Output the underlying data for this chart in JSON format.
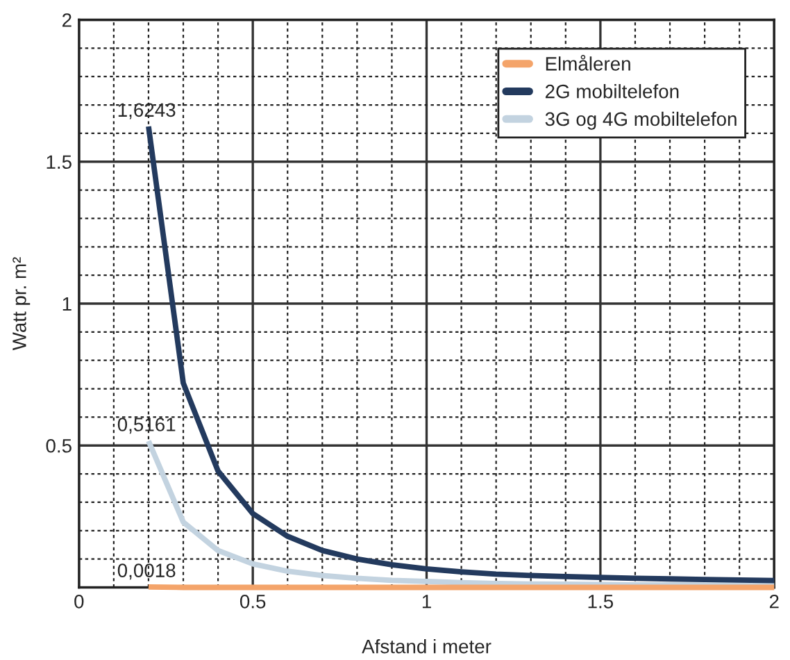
{
  "chart_data": {
    "type": "line",
    "xlabel": "Afstand i meter",
    "ylabel": "Watt pr. m²",
    "x": [
      0.2,
      0.3,
      0.4,
      0.5,
      0.6,
      0.7,
      0.8,
      0.9,
      1.0,
      1.1,
      1.2,
      1.3,
      1.4,
      1.5,
      1.6,
      1.7,
      1.8,
      1.9,
      2.0
    ],
    "series": [
      {
        "name": "Elmåleren",
        "color": "#f4a46a",
        "values": [
          0.0018,
          0,
          0,
          0,
          0,
          0,
          0,
          0,
          0,
          0,
          0,
          0,
          0,
          0,
          0,
          0,
          0,
          0,
          0
        ],
        "value_labels": [
          "0,0018",
          null,
          null,
          null,
          null,
          null,
          null,
          null,
          null,
          null,
          null,
          null,
          null,
          null,
          null,
          null,
          null,
          null,
          null
        ]
      },
      {
        "name": "2G mobiltelefon",
        "color": "#233a5e",
        "values": [
          1.6243,
          0.72,
          0.41,
          0.26,
          0.18,
          0.13,
          0.1,
          0.08,
          0.065,
          0.055,
          0.047,
          0.042,
          0.038,
          0.035,
          0.032,
          0.03,
          0.028,
          0.026,
          0.024
        ],
        "value_labels": [
          "1,6243",
          null,
          null,
          null,
          null,
          null,
          null,
          null,
          null,
          null,
          null,
          null,
          null,
          null,
          null,
          null,
          null,
          null,
          null
        ]
      },
      {
        "name": "3G og 4G mobiltelefon",
        "color": "#c3d3e0",
        "values": [
          0.5161,
          0.23,
          0.13,
          0.083,
          0.057,
          0.042,
          0.032,
          0.025,
          0.021,
          0.017,
          0.014,
          0.012,
          0.011,
          0.01,
          0.009,
          0.009,
          0.008,
          0.008,
          0.007
        ],
        "value_labels": [
          "0,5161",
          null,
          null,
          null,
          null,
          null,
          null,
          null,
          null,
          null,
          null,
          null,
          null,
          null,
          null,
          null,
          null,
          null,
          null
        ]
      }
    ],
    "xlim": [
      0,
      2
    ],
    "ylim": [
      0,
      2
    ],
    "xticks": [
      0,
      {
        "value": 0.1,
        "label": null
      },
      {
        "value": 0.2,
        "label": null
      },
      {
        "value": 0.3,
        "label": null
      },
      {
        "value": 0.4,
        "label": null
      },
      0.5,
      {
        "value": 0.6,
        "label": null
      },
      {
        "value": 0.7,
        "label": null
      },
      {
        "value": 0.8,
        "label": null
      },
      {
        "value": 0.9,
        "label": null
      },
      1,
      {
        "value": 1.1,
        "label": null
      },
      {
        "value": 1.2,
        "label": null
      },
      {
        "value": 1.3,
        "label": null
      },
      {
        "value": 1.4,
        "label": null
      },
      1.5,
      {
        "value": 1.6,
        "label": null
      },
      {
        "value": 1.7,
        "label": null
      },
      {
        "value": 1.8,
        "label": null
      },
      {
        "value": 1.9,
        "label": null
      },
      2
    ],
    "yticks": [
      {
        "value": 0.1,
        "label": null
      },
      {
        "value": 0.2,
        "label": null
      },
      {
        "value": 0.3,
        "label": null
      },
      {
        "value": 0.4,
        "label": null
      },
      0.5,
      {
        "value": 0.6,
        "label": null
      },
      {
        "value": 0.7,
        "label": null
      },
      {
        "value": 0.8,
        "label": null
      },
      {
        "value": 0.9,
        "label": null
      },
      1,
      {
        "value": 1.1,
        "label": null
      },
      {
        "value": 1.2,
        "label": null
      },
      {
        "value": 1.3,
        "label": null
      },
      {
        "value": 1.4,
        "label": null
      },
      1.5,
      {
        "value": 1.6,
        "label": null
      },
      {
        "value": 1.7,
        "label": null
      },
      {
        "value": 1.8,
        "label": null
      },
      {
        "value": 1.9,
        "label": null
      },
      2
    ],
    "grid": true,
    "legend": "top right",
    "marker": "none",
    "line_style": "solid"
  }
}
